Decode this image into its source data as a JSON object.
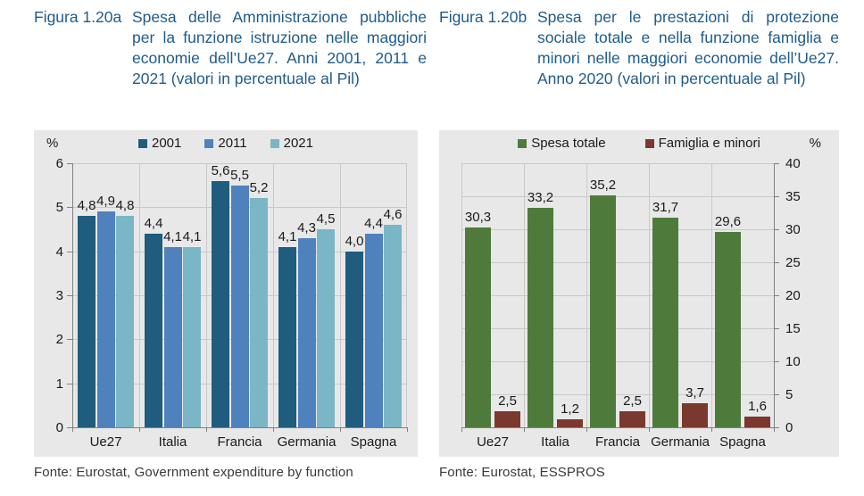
{
  "theme": {
    "title_color": "#1E5C8B",
    "source_color": "#3A3A3A",
    "background": "#FFFFFF"
  },
  "chart_data": [
    {
      "type": "bar",
      "figure_label": "Figura 1.20a",
      "title": "Spesa delle Amministrazione pubbliche per la funzione istru­zione nelle maggiori economie dell’Ue27. Anni 2001, 2011 e 2021 (valori in percentuale al Pil)",
      "source": "Fonte: Eurostat, Government expenditure by function",
      "unit_label": "%",
      "yaxis_side": "left",
      "ylim": [
        0,
        6
      ],
      "ytick_step": 1,
      "grid": true,
      "legend_position": "top-center",
      "categories": [
        "Ue27",
        "Italia",
        "Francia",
        "Germania",
        "Spagna"
      ],
      "series": [
        {
          "name": "2001",
          "color": "#1F5C7E",
          "values": [
            4.8,
            4.4,
            5.6,
            4.1,
            4.0
          ],
          "labels": [
            "4,8",
            "4,4",
            "5,6",
            "4,1",
            "4,0"
          ]
        },
        {
          "name": "2011",
          "color": "#4F81BD",
          "values": [
            4.9,
            4.1,
            5.5,
            4.3,
            4.4
          ],
          "labels": [
            "4,9",
            "4,1",
            "5,5",
            "4,3",
            "4,4"
          ]
        },
        {
          "name": "2021",
          "color": "#7AB6C5",
          "values": [
            4.8,
            4.1,
            5.2,
            4.5,
            4.6
          ],
          "labels": [
            "4,8",
            "4,1",
            "5,2",
            "4,5",
            "4,6"
          ]
        }
      ],
      "colors": {
        "panel_bg": "#E8E8E8",
        "grid": "#C9C9C9",
        "axis": "#808080",
        "text": "#1A1A1A"
      }
    },
    {
      "type": "bar",
      "figure_label": "Figura 1.20b",
      "title": "Spesa per le prestazioni di prote­zione sociale totale e nella funzione famiglia e minori nelle maggiori economie dell’Ue27. Anno 2020 (valori in percentuale al Pil)",
      "source": "Fonte: Eurostat, ESSPROS",
      "unit_label": "%",
      "yaxis_side": "right",
      "ylim": [
        0,
        40
      ],
      "ytick_step": 5,
      "grid": true,
      "legend_position": "top-center",
      "categories": [
        "Ue27",
        "Italia",
        "Francia",
        "Germania",
        "Spagna"
      ],
      "series": [
        {
          "name": "Spesa totale",
          "color": "#4E7B3C",
          "values": [
            30.3,
            33.2,
            35.2,
            31.7,
            29.6
          ],
          "labels": [
            "30,3",
            "33,2",
            "35,2",
            "31,7",
            "29,6"
          ]
        },
        {
          "name": "Famiglia e minori",
          "color": "#7B382E",
          "values": [
            2.5,
            1.2,
            2.5,
            3.7,
            1.6
          ],
          "labels": [
            "2,5",
            "1,2",
            "2,5",
            "3,7",
            "1,6"
          ]
        }
      ],
      "colors": {
        "panel_bg": "#E8E8E8",
        "grid": "#C9C9C9",
        "axis": "#808080",
        "text": "#1A1A1A"
      }
    }
  ]
}
